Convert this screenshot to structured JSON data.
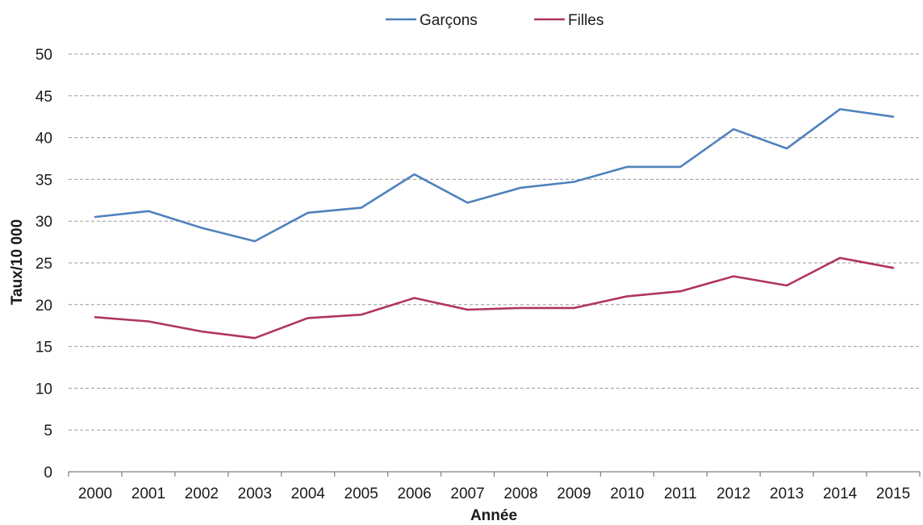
{
  "chart_data": {
    "type": "line",
    "title": "",
    "xlabel": "Année",
    "ylabel": "Taux/10 000",
    "x": [
      "2000",
      "2001",
      "2002",
      "2003",
      "2004",
      "2005",
      "2006",
      "2007",
      "2008",
      "2009",
      "2010",
      "2011",
      "2012",
      "2013",
      "2014",
      "2015"
    ],
    "ylim": [
      0,
      50
    ],
    "yticks": [
      "0",
      "5",
      "10",
      "15",
      "20",
      "25",
      "30",
      "35",
      "40",
      "45",
      "50"
    ],
    "grid": true,
    "legend_position": "top-center",
    "series": [
      {
        "name": "Garçons",
        "color": "#4f81bd",
        "values": [
          30.5,
          31.2,
          29.2,
          27.6,
          31.0,
          31.6,
          35.6,
          32.2,
          34.0,
          34.7,
          36.5,
          36.5,
          41.0,
          38.7,
          43.4,
          42.5
        ]
      },
      {
        "name": "Filles",
        "color": "#b0345f",
        "values": [
          18.5,
          18.0,
          16.8,
          16.0,
          18.4,
          18.8,
          20.8,
          19.4,
          19.6,
          19.6,
          21.0,
          21.6,
          23.4,
          22.3,
          25.6,
          24.4
        ]
      }
    ]
  }
}
